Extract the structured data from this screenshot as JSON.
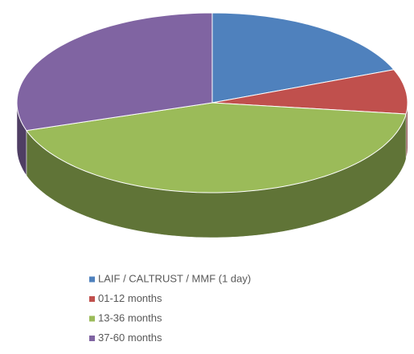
{
  "chart_data": {
    "type": "pie3d",
    "categories": [
      "LAIF / CALTRUST / MMF (1 day)",
      "01-12 months",
      "13-36 months",
      "37-60 months"
    ],
    "values": [
      19,
      8,
      43,
      30
    ],
    "colors": [
      "#4f81bd",
      "#c0504d",
      "#9bbb59",
      "#8064a2"
    ],
    "legend": "bottom"
  }
}
